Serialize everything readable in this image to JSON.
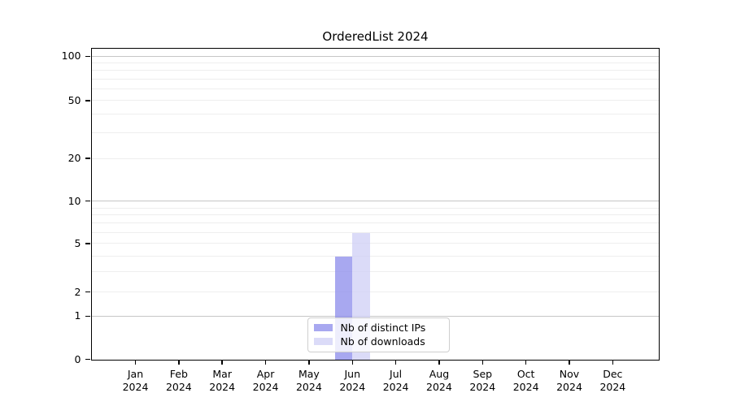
{
  "title": "OrderedList 2024",
  "chart_data": {
    "type": "bar",
    "title": "OrderedList 2024",
    "categories": [
      "Jan 2024",
      "Feb 2024",
      "Mar 2024",
      "Apr 2024",
      "May 2024",
      "Jun 2024",
      "Jul 2024",
      "Aug 2024",
      "Sep 2024",
      "Oct 2024",
      "Nov 2024",
      "Dec 2024"
    ],
    "series": [
      {
        "name": "Nb of distinct IPs",
        "swatch_color": "#a8a8f0",
        "fill_color": "rgba(139,139,235,0.75)",
        "values": [
          0,
          0,
          0,
          0,
          0,
          4,
          0,
          0,
          0,
          0,
          0,
          0
        ]
      },
      {
        "name": "Nb of downloads",
        "swatch_color": "#dbdbf8",
        "fill_color": "rgba(207,207,246,0.75)",
        "values": [
          0,
          0,
          0,
          0,
          0,
          6,
          0,
          0,
          0,
          0,
          0,
          0
        ]
      }
    ],
    "xlabel": "",
    "ylabel": "",
    "y_axis": {
      "scale": "asinh-like (log above 1, linear squeeze 0-1)",
      "labeled_ticks": [
        0,
        1,
        2,
        5,
        10,
        20,
        50,
        100
      ],
      "major_gridlines": [
        1,
        10,
        100
      ],
      "minor_gridlines": [
        2,
        3,
        4,
        5,
        6,
        7,
        8,
        9,
        20,
        30,
        40,
        50,
        60,
        70,
        80,
        90
      ],
      "ylim_top_approx": 112
    },
    "legend": {
      "position": "lower center",
      "entries": [
        "Nb of distinct IPs",
        "Nb of downloads"
      ]
    },
    "grid": "horizontal major+minor",
    "scale_anchors": {
      "0": 1.0,
      "1": 0.8616,
      "2": 0.7833,
      "3": 0.718,
      "4": 0.6684,
      "5": 0.6279,
      "6": 0.5927,
      "7": 0.5614,
      "8": 0.5352,
      "9": 0.5144,
      "10": 0.4909,
      "20": 0.3538,
      "30": 0.2715,
      "40": 0.2115,
      "50": 0.1684,
      "60": 0.1305,
      "70": 0.0992,
      "80": 0.0705,
      "90": 0.047,
      "100": 0.0261
    }
  },
  "colors": {
    "major_grid": "#c6c6c6",
    "minor_grid": "#eeeeee",
    "axis": "#000000",
    "legend_border": "#cfcfcf"
  }
}
